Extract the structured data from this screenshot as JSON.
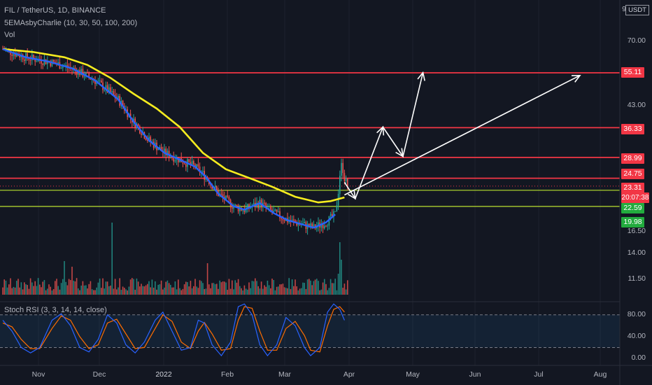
{
  "chart_data": {
    "type": "candlestick",
    "legend": {
      "symbol": "FIL / TetherUS, 1D, BINANCE",
      "ema": "5EMAsbyCharlie (10, 30, 50, 100, 200)",
      "vol": "Vol",
      "stoch": "Stoch RSI (3, 3, 14, 14, close)"
    },
    "quote_currency": "USDT",
    "price_axis": {
      "scale": "log",
      "ticks": [
        "70.00",
        "55.11",
        "43.00",
        "36.33",
        "28.99",
        "24.75",
        "23.31",
        "22.59",
        "19.98",
        "16.50",
        "14.00",
        "11.50"
      ],
      "plain_ticks": [
        "70.00",
        "43.00",
        "16.50",
        "14.00",
        "11.50"
      ],
      "top_label": "9"
    },
    "price_tags": [
      {
        "label": "55.11",
        "value": 55.11,
        "color": "#f23645"
      },
      {
        "label": "36.33",
        "value": 36.33,
        "color": "#f23645"
      },
      {
        "label": "28.99",
        "value": 28.99,
        "color": "#f23645"
      },
      {
        "label": "24.75",
        "value": 24.75,
        "color": "#f23645"
      },
      {
        "label": "23.31",
        "value": 23.31,
        "color": "#f23645"
      },
      {
        "label": "20:07:38",
        "value": 22.8,
        "color": "#f23645"
      },
      {
        "label": "22.59",
        "value": 22.59,
        "color": "#22ab3e"
      },
      {
        "label": "19.98",
        "value": 19.98,
        "color": "#22ab3e"
      }
    ],
    "horizontal_lines": [
      {
        "value": 55.11,
        "color": "#f23645"
      },
      {
        "value": 36.33,
        "color": "#f23645"
      },
      {
        "value": 28.99,
        "color": "#f23645"
      },
      {
        "value": 24.75,
        "color": "#f23645"
      },
      {
        "value": 22.59,
        "color": "#b9e030"
      },
      {
        "value": 19.98,
        "color": "#b9e030"
      }
    ],
    "x_axis": {
      "labels": [
        "Nov",
        "Dec",
        "2022",
        "Feb",
        "Mar",
        "Apr",
        "May",
        "Jun",
        "Jul",
        "Aug"
      ]
    },
    "ema_fast": [
      [
        0,
        66
      ],
      [
        15,
        62
      ],
      [
        30,
        60
      ],
      [
        45,
        57
      ],
      [
        60,
        52
      ],
      [
        75,
        45
      ],
      [
        85,
        38
      ],
      [
        95,
        33
      ],
      [
        105,
        30
      ],
      [
        115,
        28.5
      ],
      [
        125,
        27
      ],
      [
        132,
        25
      ],
      [
        140,
        22
      ],
      [
        150,
        20
      ],
      [
        157,
        19.5
      ],
      [
        167,
        20.5
      ],
      [
        176,
        19
      ],
      [
        185,
        18
      ],
      [
        195,
        17.4
      ],
      [
        202,
        17
      ],
      [
        210,
        17.7
      ],
      [
        216,
        18.8
      ]
    ],
    "ema_slow": [
      [
        0,
        66
      ],
      [
        20,
        64.5
      ],
      [
        40,
        62
      ],
      [
        55,
        58.5
      ],
      [
        70,
        53
      ],
      [
        85,
        47
      ],
      [
        100,
        42
      ],
      [
        115,
        36.5
      ],
      [
        130,
        30
      ],
      [
        145,
        26.5
      ],
      [
        160,
        24.8
      ],
      [
        175,
        23.2
      ],
      [
        190,
        21.5
      ],
      [
        205,
        20.6
      ],
      [
        213,
        20.8
      ],
      [
        222,
        21.4
      ]
    ],
    "stoch_rsi_axis": {
      "ticks": [
        "80.00",
        "40.00",
        "0.00"
      ],
      "bands": [
        80,
        20
      ]
    },
    "stoch_k": [
      [
        0,
        70
      ],
      [
        6,
        50
      ],
      [
        12,
        20
      ],
      [
        18,
        10
      ],
      [
        24,
        20
      ],
      [
        32,
        70
      ],
      [
        38,
        82
      ],
      [
        44,
        60
      ],
      [
        50,
        20
      ],
      [
        56,
        12
      ],
      [
        62,
        35
      ],
      [
        68,
        80
      ],
      [
        74,
        65
      ],
      [
        80,
        25
      ],
      [
        86,
        10
      ],
      [
        92,
        30
      ],
      [
        99,
        70
      ],
      [
        104,
        85
      ],
      [
        110,
        50
      ],
      [
        116,
        15
      ],
      [
        122,
        20
      ],
      [
        127,
        70
      ],
      [
        131,
        65
      ],
      [
        136,
        25
      ],
      [
        142,
        5
      ],
      [
        148,
        30
      ],
      [
        153,
        95
      ],
      [
        157,
        100
      ],
      [
        162,
        80
      ],
      [
        167,
        25
      ],
      [
        172,
        5
      ],
      [
        178,
        25
      ],
      [
        184,
        75
      ],
      [
        190,
        60
      ],
      [
        196,
        20
      ],
      [
        200,
        5
      ],
      [
        206,
        20
      ],
      [
        211,
        85
      ],
      [
        215,
        100
      ],
      [
        219,
        90
      ],
      [
        222,
        70
      ]
    ],
    "stoch_d": [
      [
        0,
        65
      ],
      [
        6,
        58
      ],
      [
        12,
        35
      ],
      [
        18,
        18
      ],
      [
        24,
        18
      ],
      [
        32,
        55
      ],
      [
        38,
        78
      ],
      [
        44,
        70
      ],
      [
        50,
        40
      ],
      [
        56,
        18
      ],
      [
        62,
        25
      ],
      [
        68,
        65
      ],
      [
        74,
        72
      ],
      [
        80,
        45
      ],
      [
        86,
        18
      ],
      [
        92,
        20
      ],
      [
        99,
        55
      ],
      [
        104,
        80
      ],
      [
        110,
        68
      ],
      [
        116,
        30
      ],
      [
        122,
        18
      ],
      [
        127,
        50
      ],
      [
        131,
        66
      ],
      [
        136,
        45
      ],
      [
        142,
        15
      ],
      [
        148,
        18
      ],
      [
        153,
        70
      ],
      [
        157,
        95
      ],
      [
        162,
        92
      ],
      [
        167,
        50
      ],
      [
        172,
        15
      ],
      [
        178,
        15
      ],
      [
        184,
        55
      ],
      [
        190,
        68
      ],
      [
        196,
        42
      ],
      [
        200,
        15
      ],
      [
        206,
        12
      ],
      [
        211,
        60
      ],
      [
        215,
        90
      ],
      [
        219,
        95
      ],
      [
        222,
        85
      ]
    ],
    "projection_path": [
      [
        222,
        24.0
      ],
      [
        229,
        21.2
      ],
      [
        247,
        36.5
      ],
      [
        260,
        29.2
      ],
      [
        273,
        55.2
      ]
    ],
    "projection_line_2": [
      [
        222,
        21.8
      ],
      [
        375,
        54.0
      ]
    ]
  }
}
